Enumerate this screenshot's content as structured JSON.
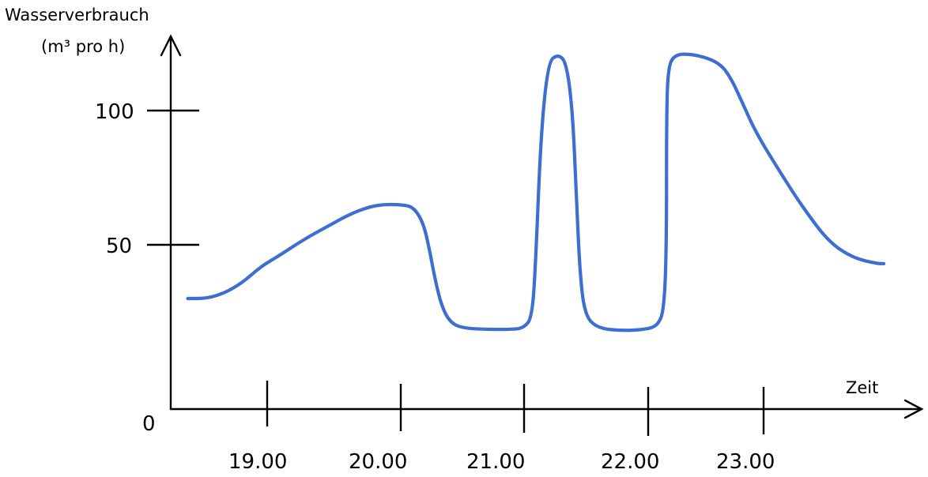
{
  "chart_data": {
    "type": "line",
    "ylabel": "Wasserverbrauch",
    "ylabel_unit": "(m³ pro h)",
    "xlabel": "Zeit",
    "origin_label": "0",
    "y_ticks": [
      50,
      100
    ],
    "y_tick_labels": [
      "50",
      "100"
    ],
    "x_tick_labels": [
      "19.00",
      "20.00",
      "21.00",
      "22.00",
      "23.00"
    ],
    "ylim": [
      0,
      125
    ],
    "xlim": [
      18.3,
      24.2
    ],
    "grid": false,
    "series": [
      {
        "color": "#3c6fd1",
        "points": [
          [
            18.35,
            30
          ],
          [
            18.5,
            30
          ],
          [
            18.65,
            32
          ],
          [
            18.8,
            36
          ],
          [
            18.95,
            42
          ],
          [
            19.1,
            46
          ],
          [
            19.3,
            52
          ],
          [
            19.5,
            57
          ],
          [
            19.7,
            62
          ],
          [
            19.9,
            65
          ],
          [
            20.1,
            65
          ],
          [
            20.2,
            64
          ],
          [
            20.28,
            58
          ],
          [
            20.33,
            48
          ],
          [
            20.38,
            36
          ],
          [
            20.43,
            27
          ],
          [
            20.5,
            21
          ],
          [
            20.6,
            19
          ],
          [
            20.8,
            18.5
          ],
          [
            21.0,
            18.5
          ],
          [
            21.1,
            19
          ],
          [
            21.17,
            23
          ],
          [
            21.2,
            45
          ],
          [
            21.24,
            90
          ],
          [
            21.3,
            118
          ],
          [
            21.38,
            121
          ],
          [
            21.45,
            118
          ],
          [
            21.5,
            100
          ],
          [
            21.53,
            70
          ],
          [
            21.56,
            40
          ],
          [
            21.6,
            24
          ],
          [
            21.7,
            19
          ],
          [
            21.9,
            18
          ],
          [
            22.1,
            18.5
          ],
          [
            22.2,
            20
          ],
          [
            22.25,
            26
          ],
          [
            22.27,
            50
          ],
          [
            22.27,
            95
          ],
          [
            22.28,
            115
          ],
          [
            22.33,
            121
          ],
          [
            22.5,
            121
          ],
          [
            22.7,
            118
          ],
          [
            22.8,
            112
          ],
          [
            22.9,
            102
          ],
          [
            23.0,
            92
          ],
          [
            23.2,
            77
          ],
          [
            23.4,
            63
          ],
          [
            23.6,
            51
          ],
          [
            23.8,
            45
          ],
          [
            24.0,
            43
          ],
          [
            24.05,
            43
          ]
        ]
      }
    ]
  },
  "colors": {
    "axis": "#000000",
    "series": "#3c6fd1",
    "background": "#ffffff"
  }
}
